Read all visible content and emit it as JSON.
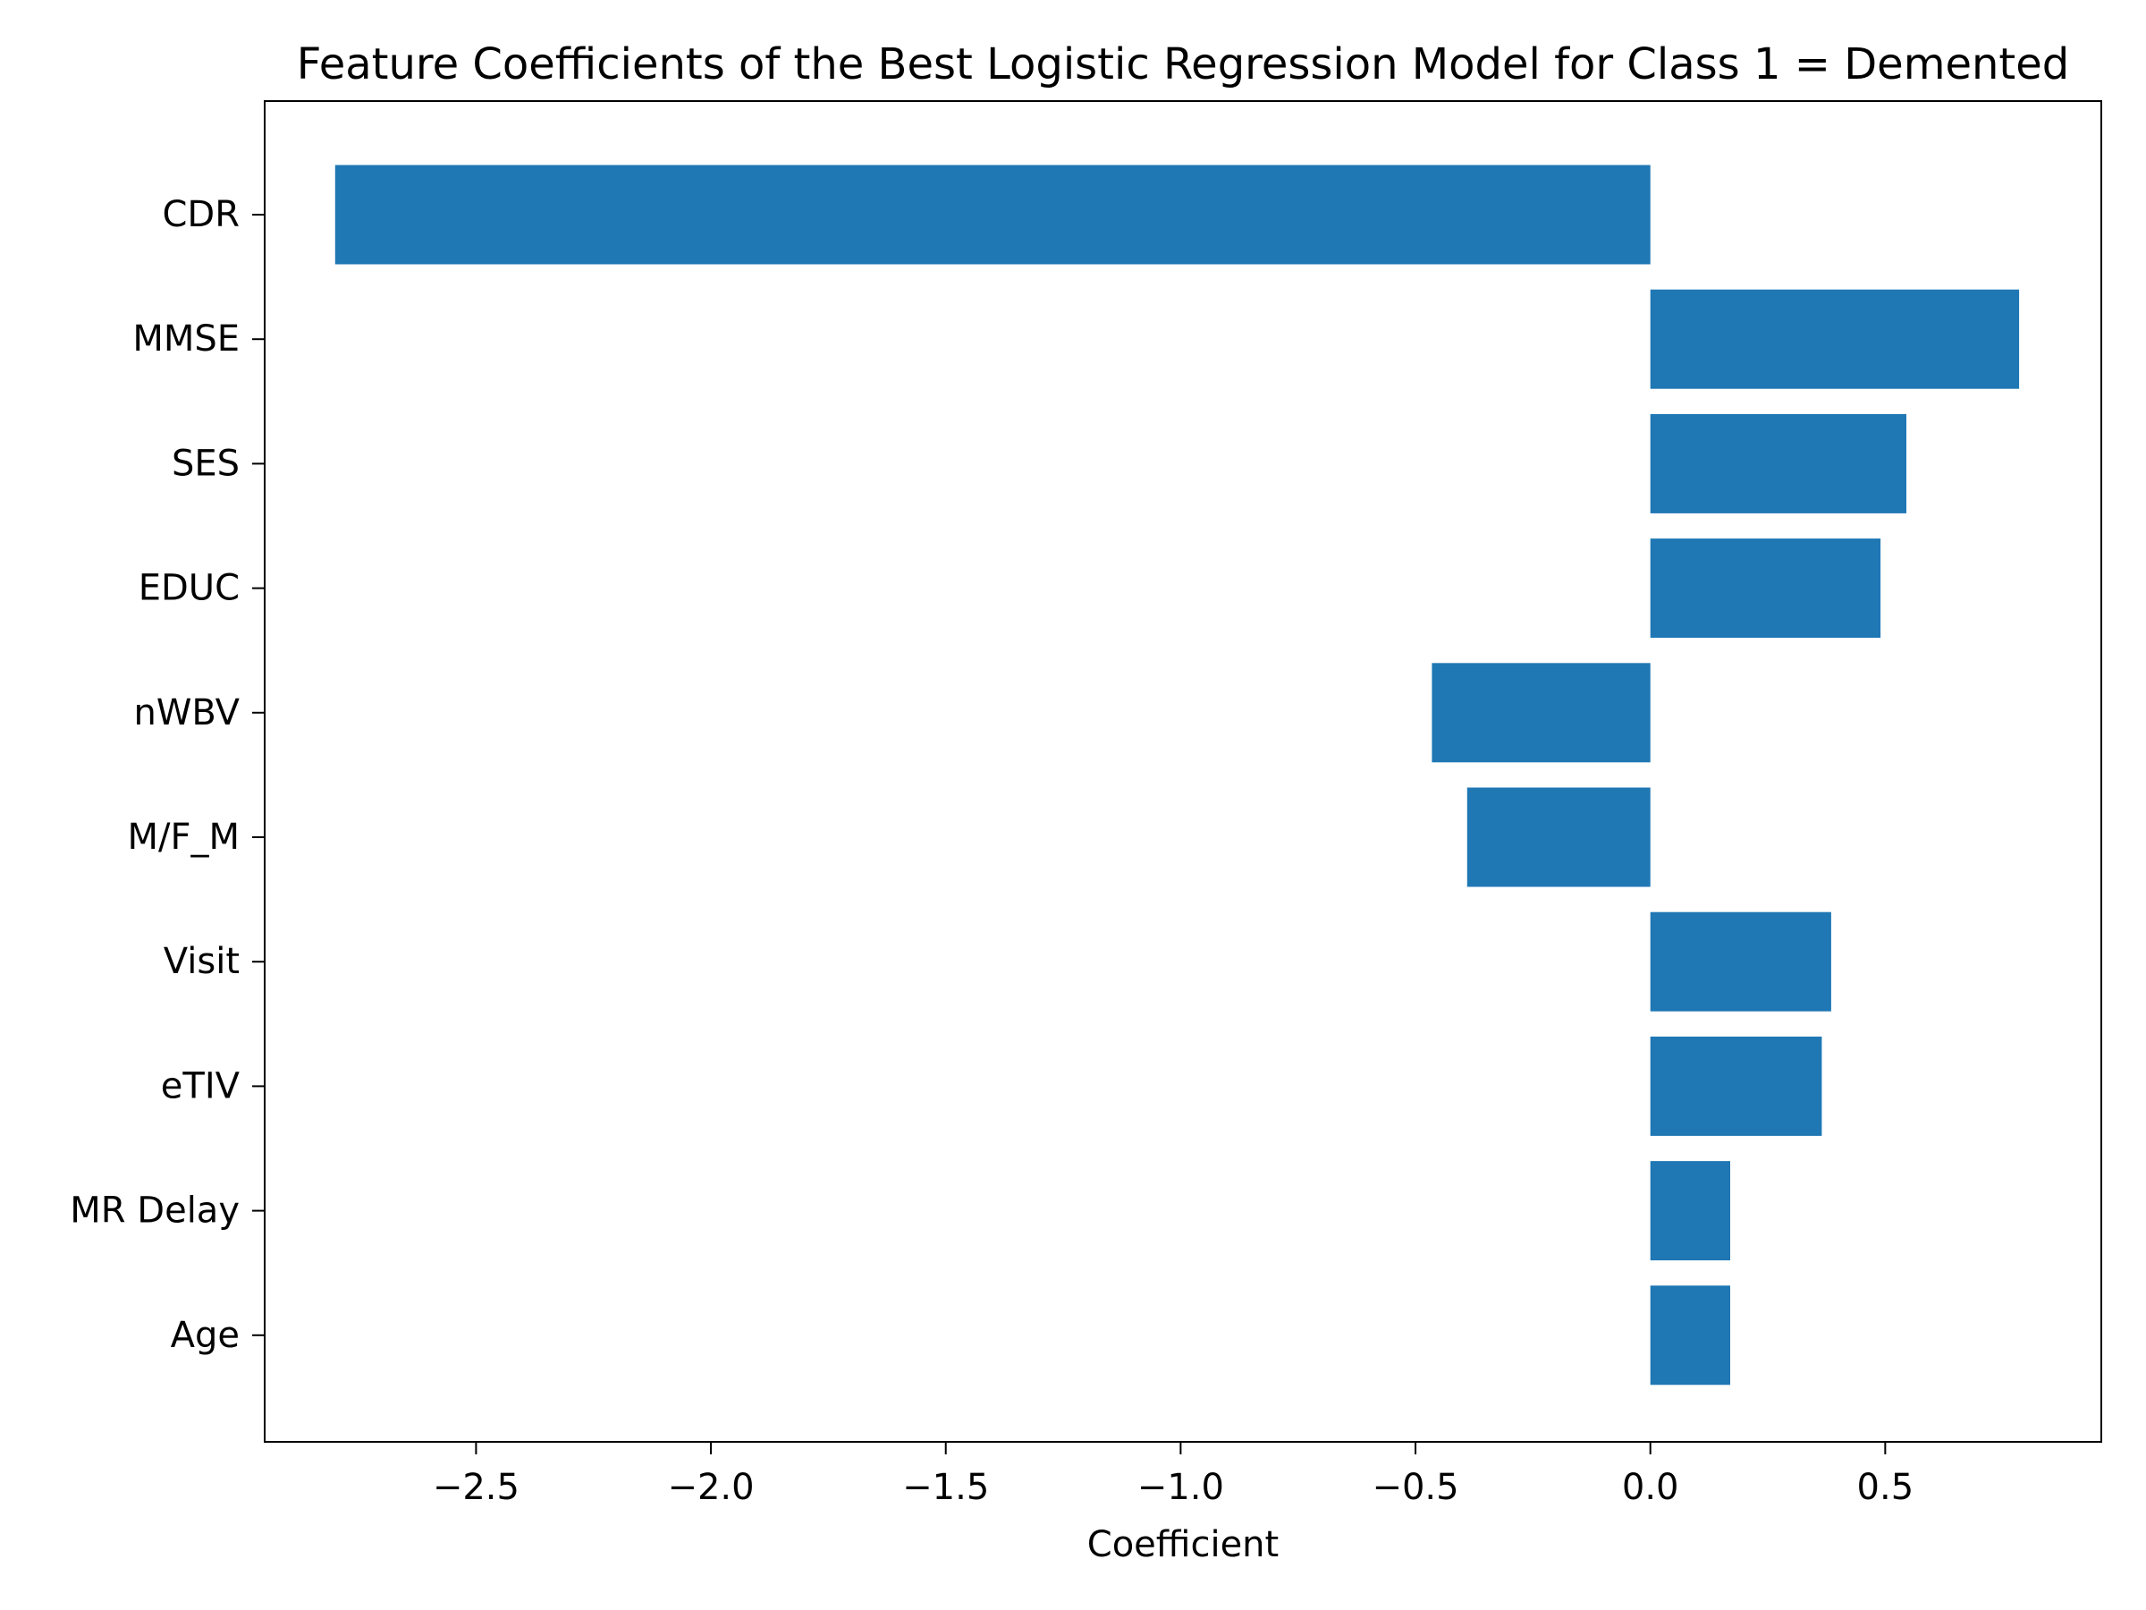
{
  "chart_data": {
    "type": "bar",
    "orientation": "horizontal",
    "title": "Feature Coefficients of the Best Logistic Regression Model for Class 1 = Demented",
    "xlabel": "Coefficient",
    "ylabel": "",
    "categories": [
      "CDR",
      "MMSE",
      "SES",
      "EDUC",
      "nWBV",
      "M/F_M",
      "Visit",
      "eTIV",
      "MR Delay",
      "Age"
    ],
    "values": [
      -2.8,
      0.785,
      0.545,
      0.49,
      -0.465,
      -0.39,
      0.385,
      0.365,
      0.17,
      0.17
    ],
    "xlim": [
      -2.95,
      0.96
    ],
    "xticks": [
      -2.5,
      -2.0,
      -1.5,
      -1.0,
      -0.5,
      0.0,
      0.5
    ],
    "xtick_labels": [
      "−2.5",
      "−2.0",
      "−1.5",
      "−1.0",
      "−0.5",
      "0.0",
      "0.5"
    ],
    "bar_color": "#1f77b4",
    "grid": false,
    "legend": "none"
  }
}
